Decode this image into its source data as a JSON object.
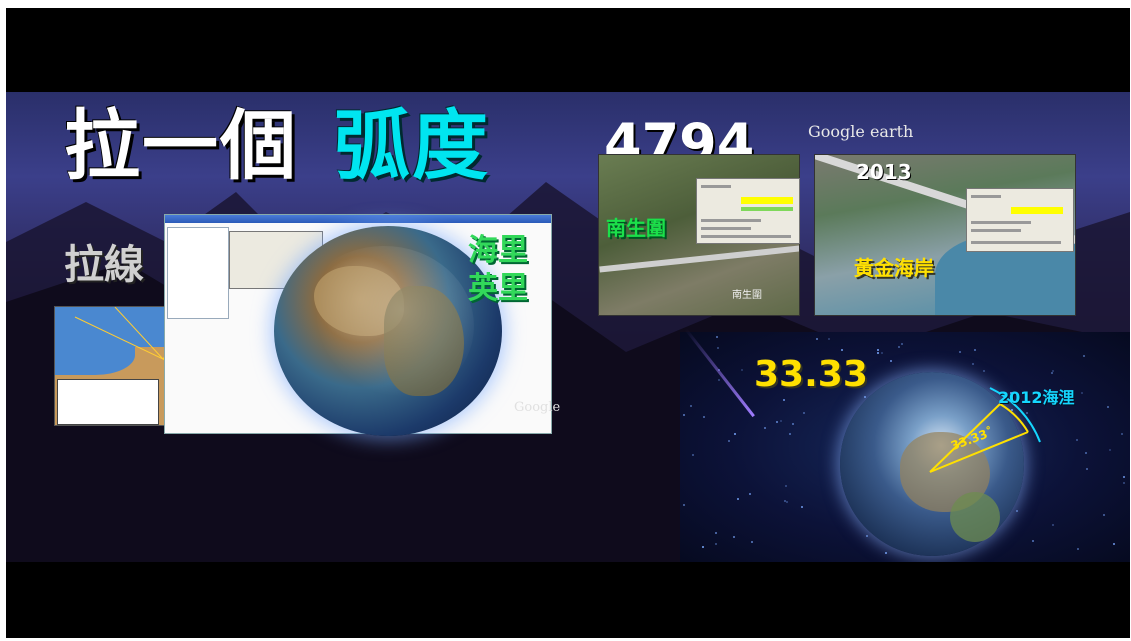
{
  "title": {
    "part1": "拉一個",
    "part2": "弧度"
  },
  "pull_line": "拉線",
  "nautical_label": "海里\n英里",
  "google_logo": "Google",
  "google_earth_logo": "Google earth",
  "distance_number": "4794",
  "year_2013": "2013",
  "place_nansheng": "南生圍",
  "place_nansheng_small": "南生圍",
  "place_gold_coast": "黃金海岸",
  "angle_number": "33.33",
  "angle_small": "33.33˚",
  "nautical_2012": "2012海浬",
  "colors": {
    "title_white": "#ffffff",
    "title_cyan": "#00e5f0",
    "green": "#32d85a",
    "yellow": "#ffe000",
    "cyan_label": "#15d6ff"
  }
}
